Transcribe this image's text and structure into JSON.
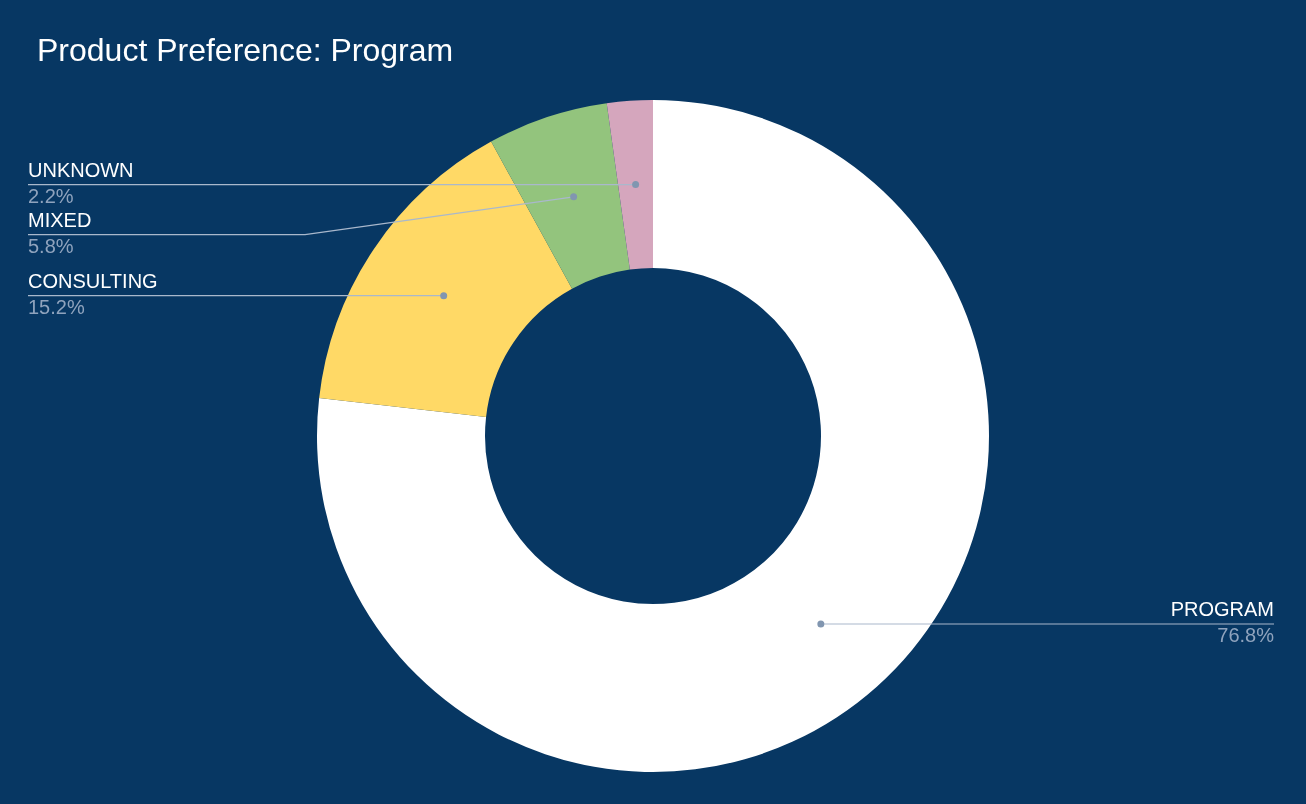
{
  "chart_data": {
    "type": "donut",
    "title": "Product Preference: Program",
    "categories": [
      "PROGRAM",
      "CONSULTING",
      "MIXED",
      "UNKNOWN"
    ],
    "values": [
      76.8,
      15.2,
      5.8,
      2.2
    ],
    "colors": [
      "#ffffff",
      "#ffd966",
      "#93c47d",
      "#d5a6bd"
    ],
    "value_labels": [
      "76.8%",
      "15.2%",
      "5.8%",
      "2.2%"
    ]
  }
}
